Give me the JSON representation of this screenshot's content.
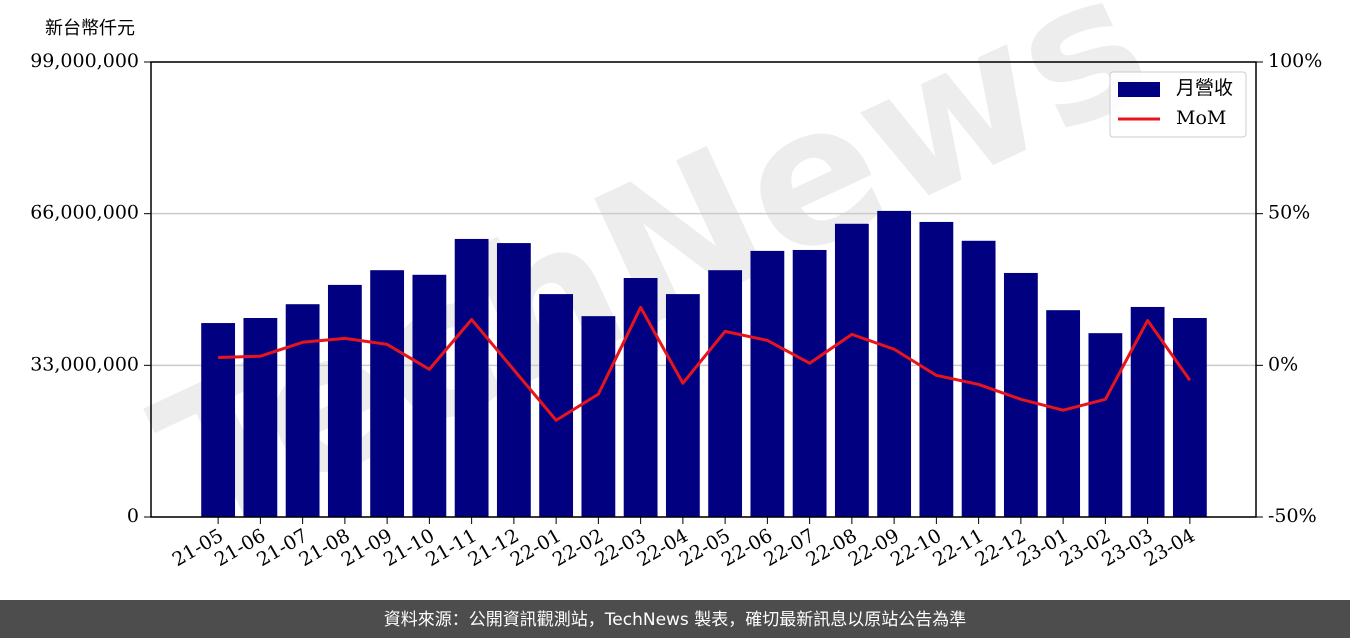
{
  "chart_data": {
    "type": "bar",
    "y_label": "新台幣仟元",
    "watermark": "TechNews",
    "footer": "資料來源：公開資訊觀測站，TechNews 製表，確切最新訊息以原站公告為準",
    "categories": [
      "21-05",
      "21-06",
      "21-07",
      "21-08",
      "21-09",
      "21-10",
      "21-11",
      "21-12",
      "22-01",
      "22-02",
      "22-03",
      "22-04",
      "22-05",
      "22-06",
      "22-07",
      "22-08",
      "22-09",
      "22-10",
      "22-11",
      "22-12",
      "23-01",
      "23-02",
      "23-03",
      "23-04"
    ],
    "series": [
      {
        "name": "月營收",
        "type": "bar",
        "color": "#000080",
        "axis": "y",
        "values": [
          42200000,
          43300000,
          46300000,
          50500000,
          53700000,
          52700000,
          60500000,
          59600000,
          48500000,
          43700000,
          52000000,
          48500000,
          53700000,
          57900000,
          58100000,
          63800000,
          66600000,
          64200000,
          60100000,
          53100000,
          45000000,
          40000000,
          45700000,
          43300000
        ]
      },
      {
        "name": "MoM",
        "type": "line",
        "color": "#e8141c",
        "axis": "y2",
        "values": [
          2.6,
          3.0,
          7.6,
          8.9,
          6.9,
          -1.3,
          15.1,
          -1.5,
          -18.1,
          -9.5,
          19.1,
          -5.9,
          11.2,
          8.2,
          0.7,
          10.2,
          5.3,
          -3.3,
          -6.3,
          -11.2,
          -14.8,
          -11.2,
          14.8,
          -4.9
        ]
      }
    ],
    "ylim": [
      0,
      99000000
    ],
    "yticks": [
      0,
      {
        "value": 33000000,
        "label": "33,000,000"
      },
      {
        "value": 66000000,
        "label": "66,000,000"
      },
      {
        "value": 99000000,
        "label": "99,000,000"
      }
    ],
    "y2lim": [
      -50,
      100
    ],
    "y2ticks": [
      {
        "value": -50,
        "label": "-50%"
      },
      {
        "value": 0,
        "label": "0%"
      },
      {
        "value": 50,
        "label": "50%"
      },
      {
        "value": 100,
        "label": "100%"
      }
    ],
    "grid": true,
    "legend": "upper right"
  }
}
